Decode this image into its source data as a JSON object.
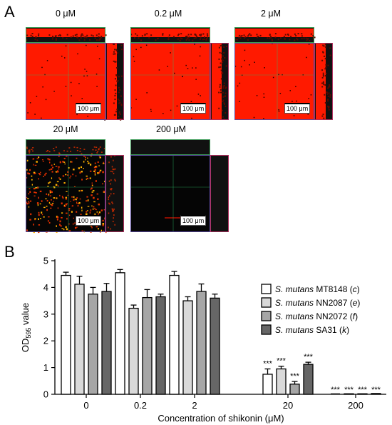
{
  "panel_a": {
    "letter": "A",
    "images": [
      {
        "label": "0 μM",
        "density": "full",
        "scale": "100 μm"
      },
      {
        "label": "0.2 μM",
        "density": "full",
        "scale": "100 μm"
      },
      {
        "label": "2 μM",
        "density": "full",
        "scale": "100 μm"
      },
      {
        "label": "20 μM",
        "density": "sparse",
        "scale": "100 μm"
      },
      {
        "label": "200 μM",
        "density": "empty",
        "scale": "100 μm"
      }
    ],
    "colors": {
      "biofilm": "#ff1a00",
      "background": "#000000"
    }
  },
  "panel_b": {
    "letter": "B"
  },
  "chart_data": {
    "type": "bar",
    "title": "",
    "xlabel": "Concentration of shikonin (μM)",
    "ylabel_parts": {
      "main": "OD",
      "subscript": "595",
      "rest": " value"
    },
    "ylim": [
      0,
      5
    ],
    "yticks": [
      "0",
      "1",
      "2",
      "3",
      "4",
      "5"
    ],
    "categories": [
      "0",
      "0.2",
      "2",
      "20",
      "200"
    ],
    "series": [
      {
        "name_italic": "S. mutans",
        "name_rest": " MT8148 (",
        "name_tag": "c",
        "name_end": ")",
        "color": "#ffffff",
        "values": [
          4.45,
          4.55,
          4.45,
          0.75,
          0.0
        ],
        "errors": [
          0.12,
          0.12,
          0.15,
          0.2,
          0.0
        ],
        "annotations": [
          "",
          "",
          "",
          "***",
          "***"
        ]
      },
      {
        "name_italic": "S. mutans",
        "name_rest": " NN2087 (",
        "name_tag": "e",
        "name_end": ")",
        "color": "#d9d9d9",
        "values": [
          4.12,
          3.22,
          3.5,
          0.95,
          0.02
        ],
        "errors": [
          0.3,
          0.12,
          0.15,
          0.1,
          0.0
        ],
        "annotations": [
          "",
          "",
          "",
          "***",
          "***"
        ]
      },
      {
        "name_italic": "S. mutans",
        "name_rest": " NN2072 (",
        "name_tag": "f",
        "name_end": ")",
        "color": "#a6a6a6",
        "values": [
          3.75,
          3.62,
          3.85,
          0.38,
          0.02
        ],
        "errors": [
          0.25,
          0.3,
          0.28,
          0.1,
          0.0
        ],
        "annotations": [
          "",
          "",
          "",
          "***",
          "***"
        ]
      },
      {
        "name_italic": "S. mutans",
        "name_rest": " SA31 (",
        "name_tag": "k",
        "name_end": ")",
        "color": "#666666",
        "values": [
          3.85,
          3.65,
          3.6,
          1.12,
          0.03
        ],
        "errors": [
          0.3,
          0.1,
          0.15,
          0.08,
          0.0
        ],
        "annotations": [
          "",
          "",
          "",
          "***",
          "***"
        ]
      }
    ],
    "legend_position": "right",
    "grid": false
  }
}
